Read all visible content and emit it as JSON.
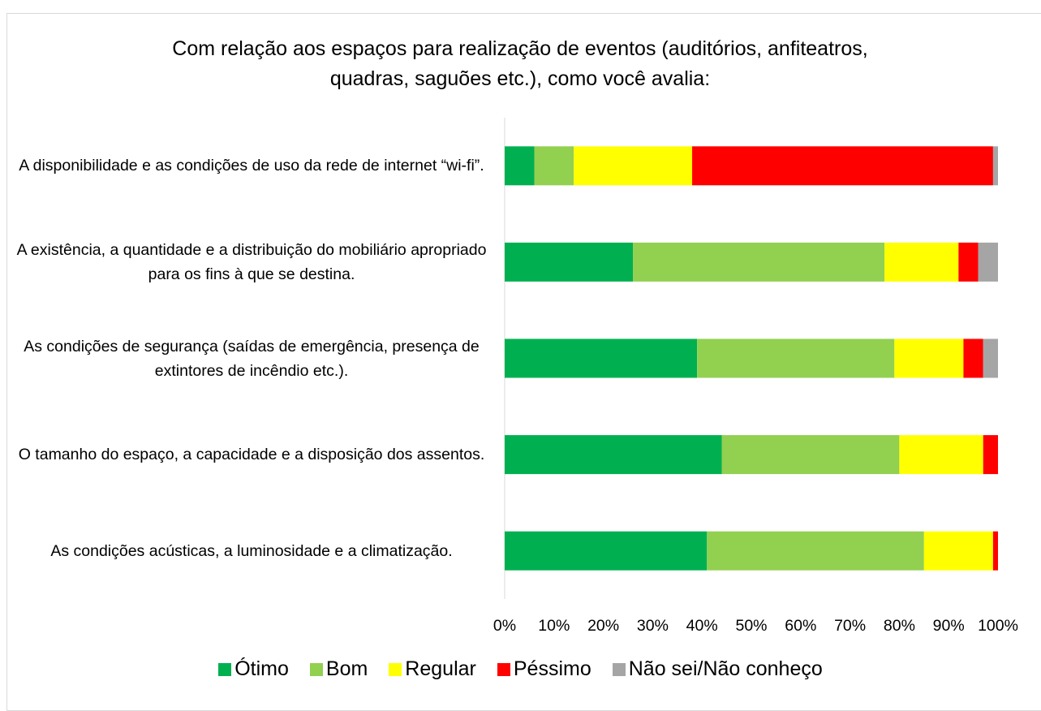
{
  "chart_data": {
    "type": "bar",
    "orientation": "horizontal",
    "stacked": true,
    "title": "Com relação aos espaços para realização de eventos (auditórios, anfiteatros, quadras, saguões etc.), como você avalia:",
    "categories": [
      "A disponibilidade e as condições de uso da rede de internet “wi-fi”.",
      "A existência, a quantidade e a distribuição do mobiliário apropriado para os fins à que se destina.",
      "As condições de segurança (saídas de emergência, presença de extintores de incêndio etc.).",
      "O tamanho do espaço, a capacidade e a disposição dos assentos.",
      "As condições acústicas, a luminosidade e a climatização."
    ],
    "series": [
      {
        "name": "Ótimo",
        "color": "#00b050",
        "values": [
          6,
          26,
          39,
          44,
          41
        ]
      },
      {
        "name": "Bom",
        "color": "#92d050",
        "values": [
          8,
          51,
          40,
          36,
          44
        ]
      },
      {
        "name": "Regular",
        "color": "#ffff00",
        "values": [
          24,
          15,
          14,
          17,
          14
        ]
      },
      {
        "name": "Péssimo",
        "color": "#ff0000",
        "values": [
          61,
          4,
          4,
          3,
          1
        ]
      },
      {
        "name": "Não sei/Não conheço",
        "color": "#a5a5a5",
        "values": [
          1,
          4,
          3,
          0,
          0
        ]
      }
    ],
    "xlim": [
      0,
      100
    ],
    "xticks": [
      {
        "value": 0,
        "label": "0%"
      },
      {
        "value": 10,
        "label": "10%"
      },
      {
        "value": 20,
        "label": "20%"
      },
      {
        "value": 30,
        "label": "30%"
      },
      {
        "value": 40,
        "label": "40%"
      },
      {
        "value": 50,
        "label": "50%"
      },
      {
        "value": 60,
        "label": "60%"
      },
      {
        "value": 70,
        "label": "70%"
      },
      {
        "value": 80,
        "label": "80%"
      },
      {
        "value": 90,
        "label": "90%"
      },
      {
        "value": 100,
        "label": "100%"
      }
    ],
    "legend": "bottom"
  }
}
